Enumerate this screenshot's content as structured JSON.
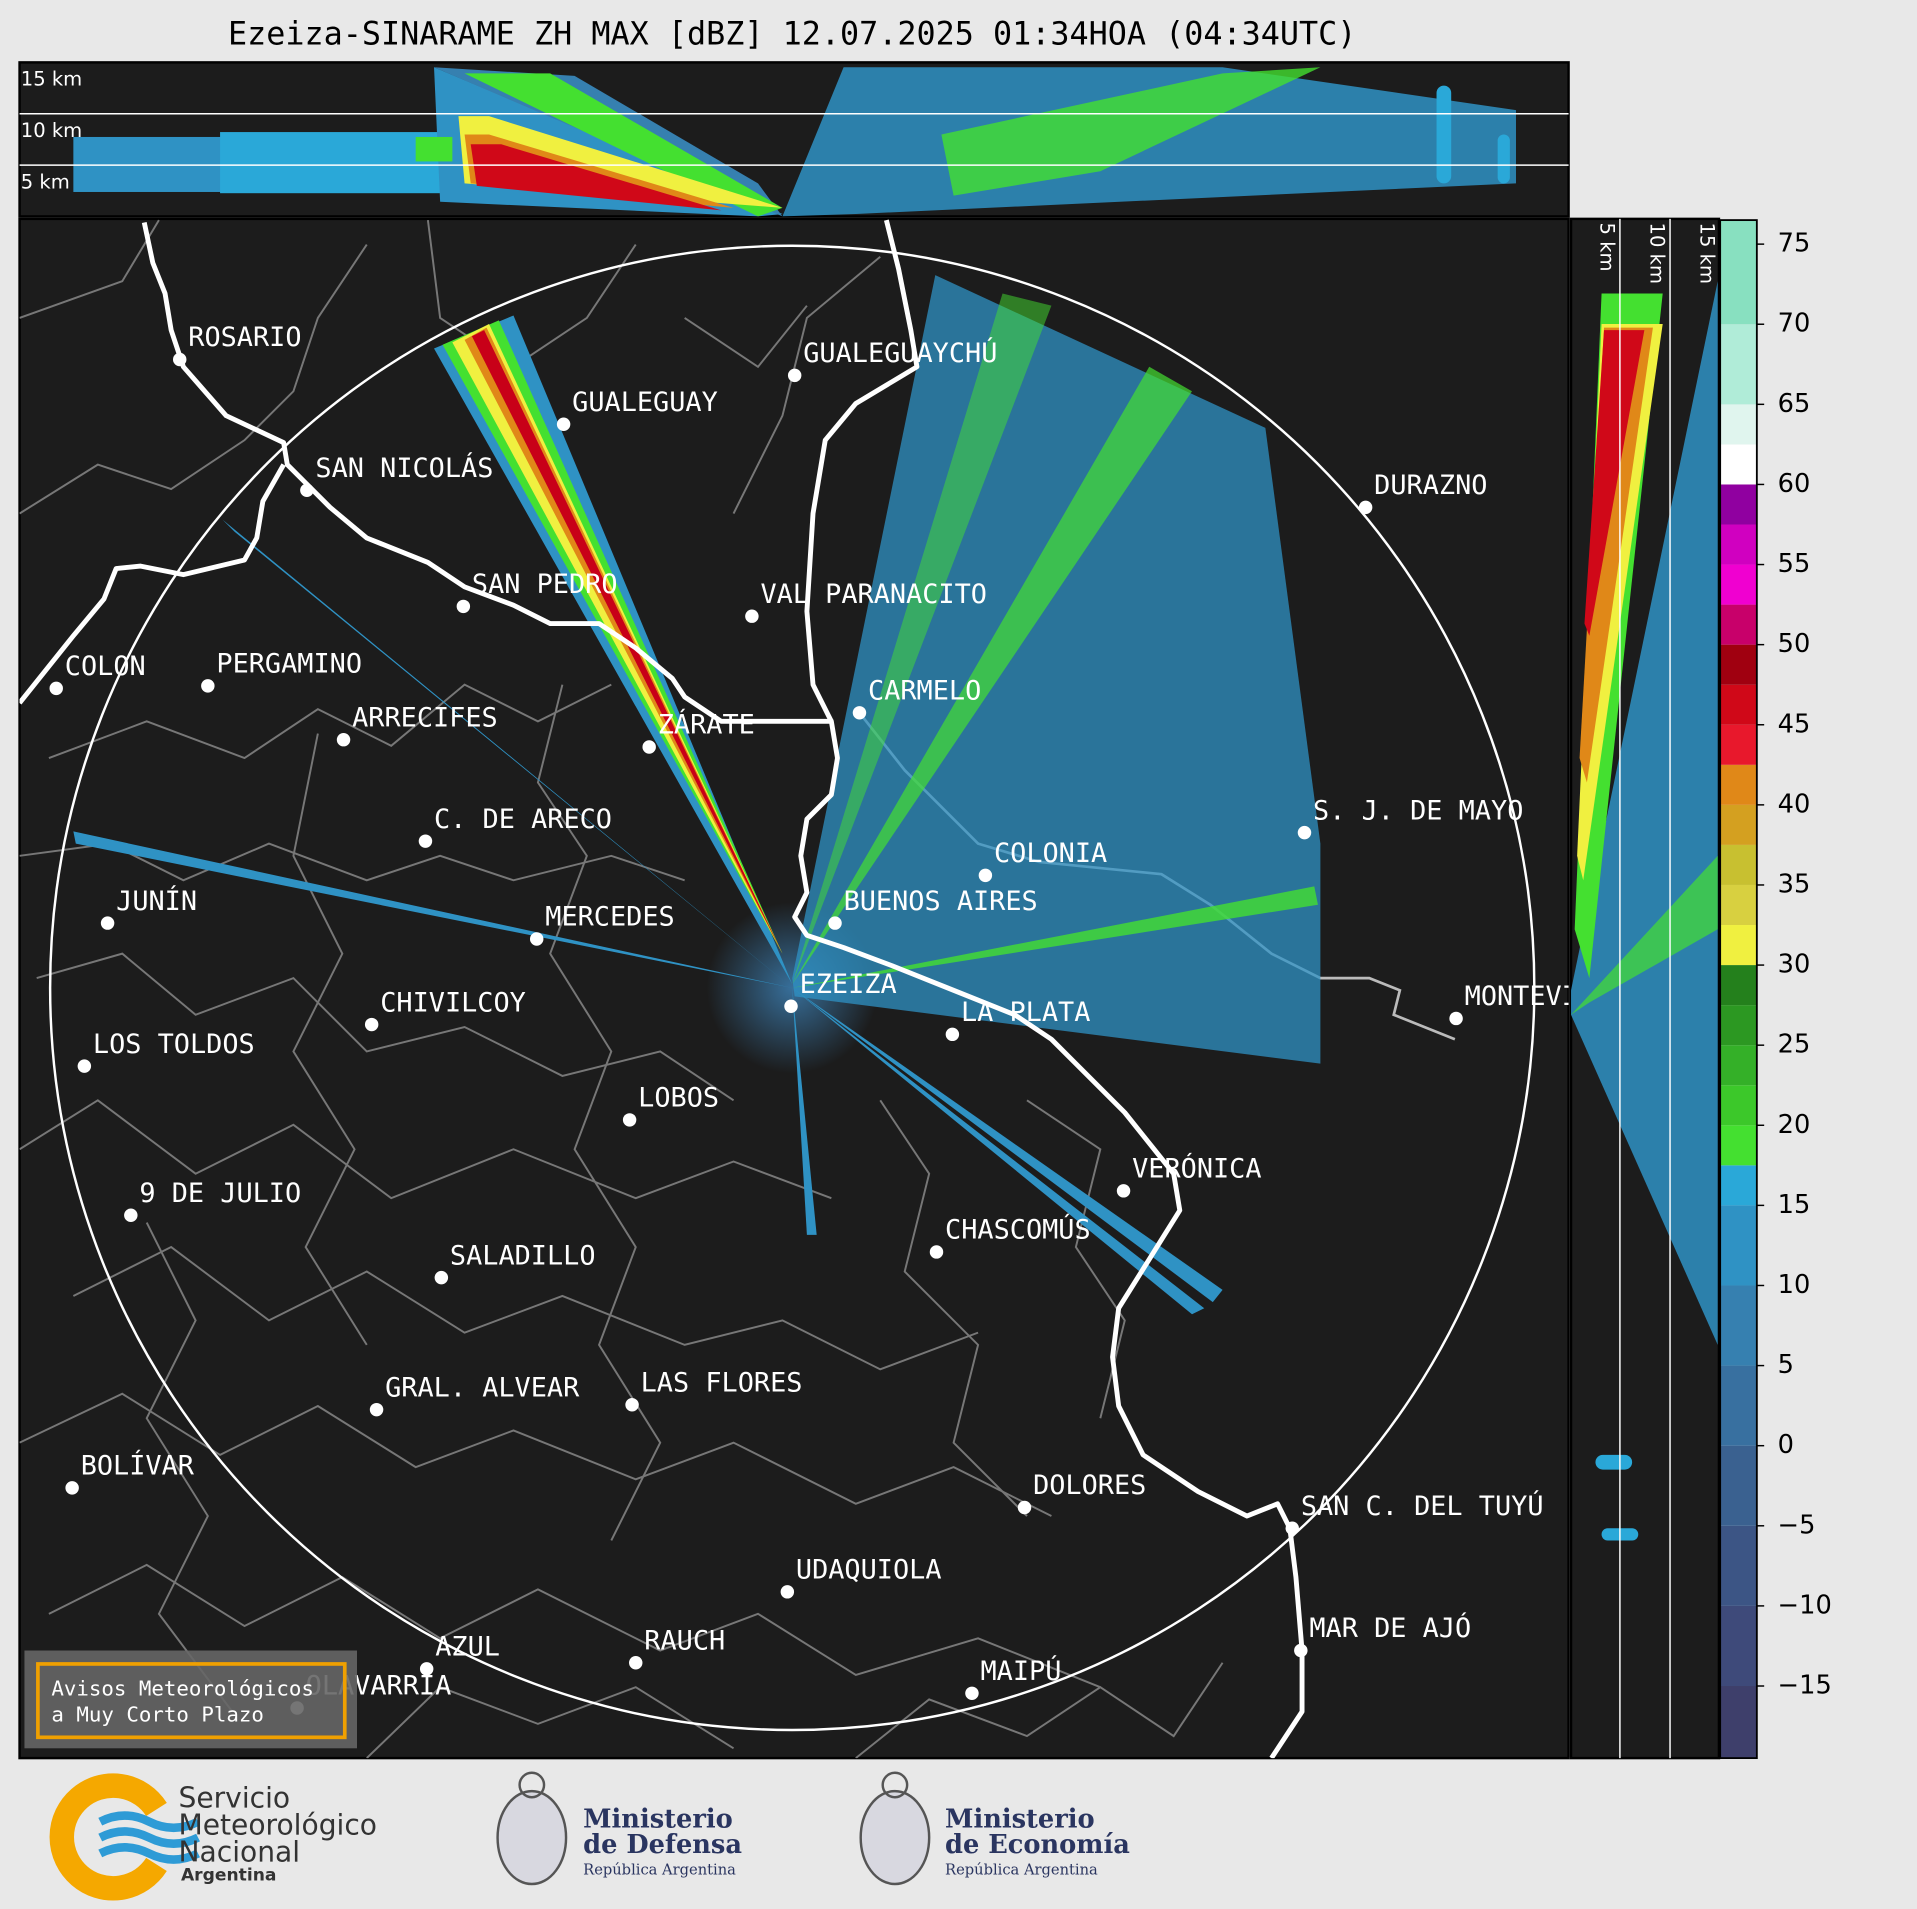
{
  "title": "Ezeiza-SINARAME ZH MAX [dBZ] 12.07.2025 01:34HOA (04:34UTC)",
  "height_labels_top": [
    "15 km",
    "10 km",
    "5 km"
  ],
  "height_labels_side": [
    "5 km",
    "10 km",
    "15 km"
  ],
  "cities": [
    "ROSARIO",
    "GUALEGUAYCHÚ",
    "GUALEGUAY",
    "SAN NICOLÁS",
    "DURAZNO",
    "SAN PEDRO",
    "VAL PARANACITO",
    "COLON",
    "PERGAMINO",
    "CARMELO",
    "ARRECIFES",
    "ZÁRATE",
    "C. DE ARECO",
    "S. J. DE MAYO",
    "COLONIA",
    "BUENOS AIRES",
    "JUNÍN",
    "MERCEDES",
    "EZEIZA",
    "MONTEVIDEO",
    "CHIVILCOY",
    "LA PLATA",
    "LOS TOLDOS",
    "LOBOS",
    "VERÓNICA",
    "9 DE JULIO",
    "CHASCOMÚS",
    "SALADILLO",
    "GRAL. ALVEAR",
    "LAS FLORES",
    "BOLÍVAR",
    "DOLORES",
    "SAN C. DEL TUYÚ",
    "UDAQUIOLA",
    "MAR DE AJÓ",
    "AZUL",
    "RAUCH",
    "OLAVARRÍA",
    "MAIPÚ"
  ],
  "colorbar": {
    "range": [
      -19.5,
      76.5
    ],
    "ticks": [
      75,
      70,
      65,
      60,
      55,
      50,
      45,
      40,
      35,
      30,
      25,
      20,
      15,
      10,
      5,
      0,
      {
        "value": -5,
        "label": "−5"
      },
      {
        "value": -10,
        "label": "−10"
      },
      {
        "value": -15,
        "label": "−15"
      }
    ],
    "bands": [
      {
        "from": -19.5,
        "to": -15,
        "color": "#3e3f6b"
      },
      {
        "from": -15,
        "to": -10,
        "color": "#3e4a7a"
      },
      {
        "from": -10,
        "to": -5,
        "color": "#3c5585"
      },
      {
        "from": -5,
        "to": 0,
        "color": "#3a6190"
      },
      {
        "from": 0,
        "to": 5,
        "color": "#3870a0"
      },
      {
        "from": 5,
        "to": 10,
        "color": "#3680b0"
      },
      {
        "from": 10,
        "to": 15,
        "color": "#2f92c4"
      },
      {
        "from": 15,
        "to": 17.5,
        "color": "#2aa8d8"
      },
      {
        "from": 17.5,
        "to": 20,
        "color": "#44e030"
      },
      {
        "from": 20,
        "to": 22.5,
        "color": "#3cc82a"
      },
      {
        "from": 22.5,
        "to": 25,
        "color": "#34b028"
      },
      {
        "from": 25,
        "to": 27.5,
        "color": "#2c9822"
      },
      {
        "from": 27.5,
        "to": 30,
        "color": "#24801c"
      },
      {
        "from": 30,
        "to": 32.5,
        "color": "#f0f040"
      },
      {
        "from": 32.5,
        "to": 35,
        "color": "#d8d040"
      },
      {
        "from": 35,
        "to": 37.5,
        "color": "#c8c030"
      },
      {
        "from": 37.5,
        "to": 40,
        "color": "#d4a020"
      },
      {
        "from": 40,
        "to": 42.5,
        "color": "#e08818"
      },
      {
        "from": 42.5,
        "to": 45,
        "color": "#e8182c"
      },
      {
        "from": 45,
        "to": 47.5,
        "color": "#d00818"
      },
      {
        "from": 47.5,
        "to": 50,
        "color": "#a00010"
      },
      {
        "from": 50,
        "to": 52.5,
        "color": "#c8006a"
      },
      {
        "from": 52.5,
        "to": 55,
        "color": "#f000d0"
      },
      {
        "from": 55,
        "to": 57.5,
        "color": "#d000c0"
      },
      {
        "from": 57.5,
        "to": 60,
        "color": "#9000a0"
      },
      {
        "from": 60,
        "to": 62.5,
        "color": "#ffffff"
      },
      {
        "from": 62.5,
        "to": 65,
        "color": "#e0f5ee"
      },
      {
        "from": 65,
        "to": 70,
        "color": "#b0ecd8"
      },
      {
        "from": 70,
        "to": 76.5,
        "color": "#88e0c0"
      }
    ]
  },
  "notice": [
    "Avisos Meteorológicos",
    "a Muy Corto Plazo"
  ],
  "footer": {
    "smn": [
      "Servicio",
      "Meteorológico",
      "Nacional",
      "Argentina"
    ],
    "defensa": [
      "Ministerio",
      "de Defensa",
      "República Argentina"
    ],
    "economia": [
      "Ministerio",
      "de Economía",
      "República Argentina"
    ]
  }
}
